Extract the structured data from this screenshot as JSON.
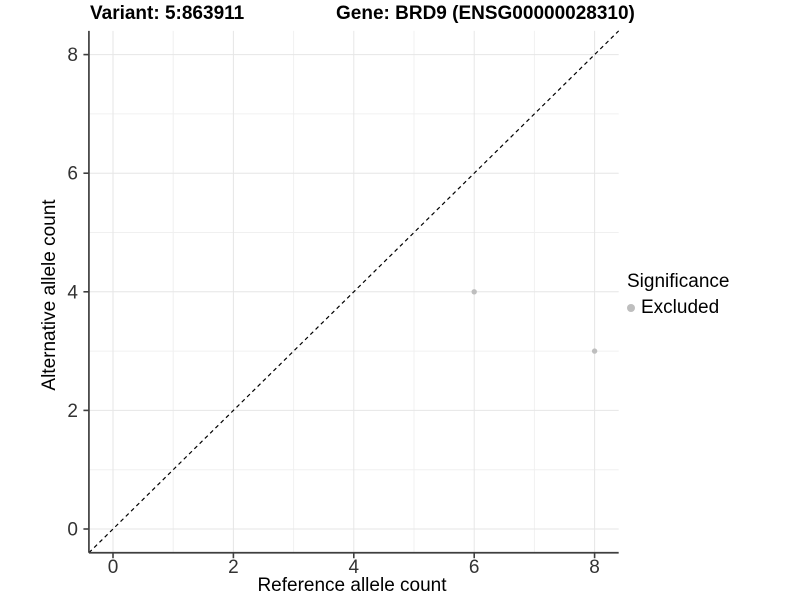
{
  "colors": {
    "background": "#ffffff",
    "grid_major": "#e6e6e6",
    "grid_minor": "#f0f0f0",
    "axis": "#3f3f3f",
    "tick_label": "#333333",
    "identity_line": "#000000",
    "point": "#bebebe"
  },
  "chart_data": {
    "type": "scatter",
    "title_left": "Variant: 5:863911",
    "title_right": "Gene: BRD9 (ENSG00000028310)",
    "xlabel": "Reference allele count",
    "ylabel": "Alternative allele count",
    "xlim": [
      -0.4,
      8.4
    ],
    "ylim": [
      -0.4,
      8.4
    ],
    "x_major_ticks": [
      0,
      2,
      4,
      6,
      8
    ],
    "y_major_ticks": [
      0,
      2,
      4,
      6,
      8
    ],
    "x_minor_gridlines": [
      1,
      3,
      5,
      7
    ],
    "y_minor_gridlines": [
      1,
      3,
      5,
      7
    ],
    "grid": "on",
    "identity_line": {
      "equation": "y = x",
      "style": "dashed"
    },
    "series": [
      {
        "name": "Excluded",
        "marker": "circle",
        "color": "#bebebe",
        "points": [
          [
            6,
            4
          ],
          [
            8,
            3
          ]
        ]
      }
    ],
    "legend": {
      "position": "right",
      "title": "Significance",
      "items": [
        {
          "label": "Excluded",
          "color": "#bebebe"
        }
      ]
    }
  }
}
